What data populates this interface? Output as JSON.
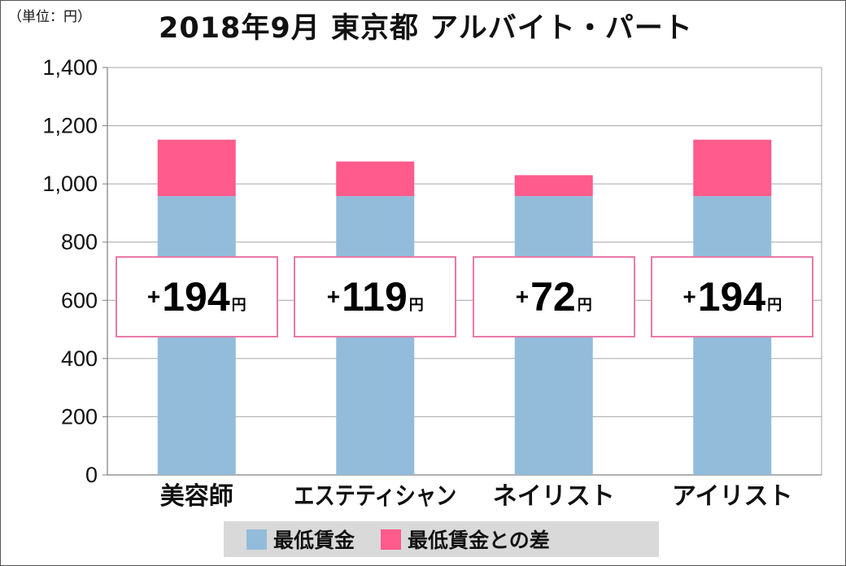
{
  "unit_label": "（単位：円）",
  "chart_data": {
    "type": "bar",
    "stacked": true,
    "title": "2018年9月 東京都 アルバイト・パート",
    "ylabel": "",
    "xlabel": "",
    "ylim": [
      0,
      1400
    ],
    "yticks": [
      0,
      200,
      400,
      600,
      800,
      1000,
      1200,
      1400
    ],
    "ytick_labels": [
      "0",
      "200",
      "400",
      "600",
      "800",
      "1,000",
      "1,200",
      "1,400"
    ],
    "grid": true,
    "categories": [
      "美容師",
      "エステティシャン",
      "ネイリスト",
      "アイリスト"
    ],
    "series": [
      {
        "name": "最低賃金",
        "values": [
          958,
          958,
          958,
          958
        ],
        "color": "#93bcdb"
      },
      {
        "name": "最低賃金との差",
        "values": [
          194,
          119,
          72,
          194
        ],
        "color": "#ff5b8d"
      }
    ],
    "annotations": [
      {
        "sign": "+",
        "value": "194",
        "unit": "円"
      },
      {
        "sign": "+",
        "value": "119",
        "unit": "円"
      },
      {
        "sign": "+",
        "value": "72",
        "unit": "円"
      },
      {
        "sign": "+",
        "value": "194",
        "unit": "円"
      }
    ],
    "legend_position": "bottom"
  }
}
